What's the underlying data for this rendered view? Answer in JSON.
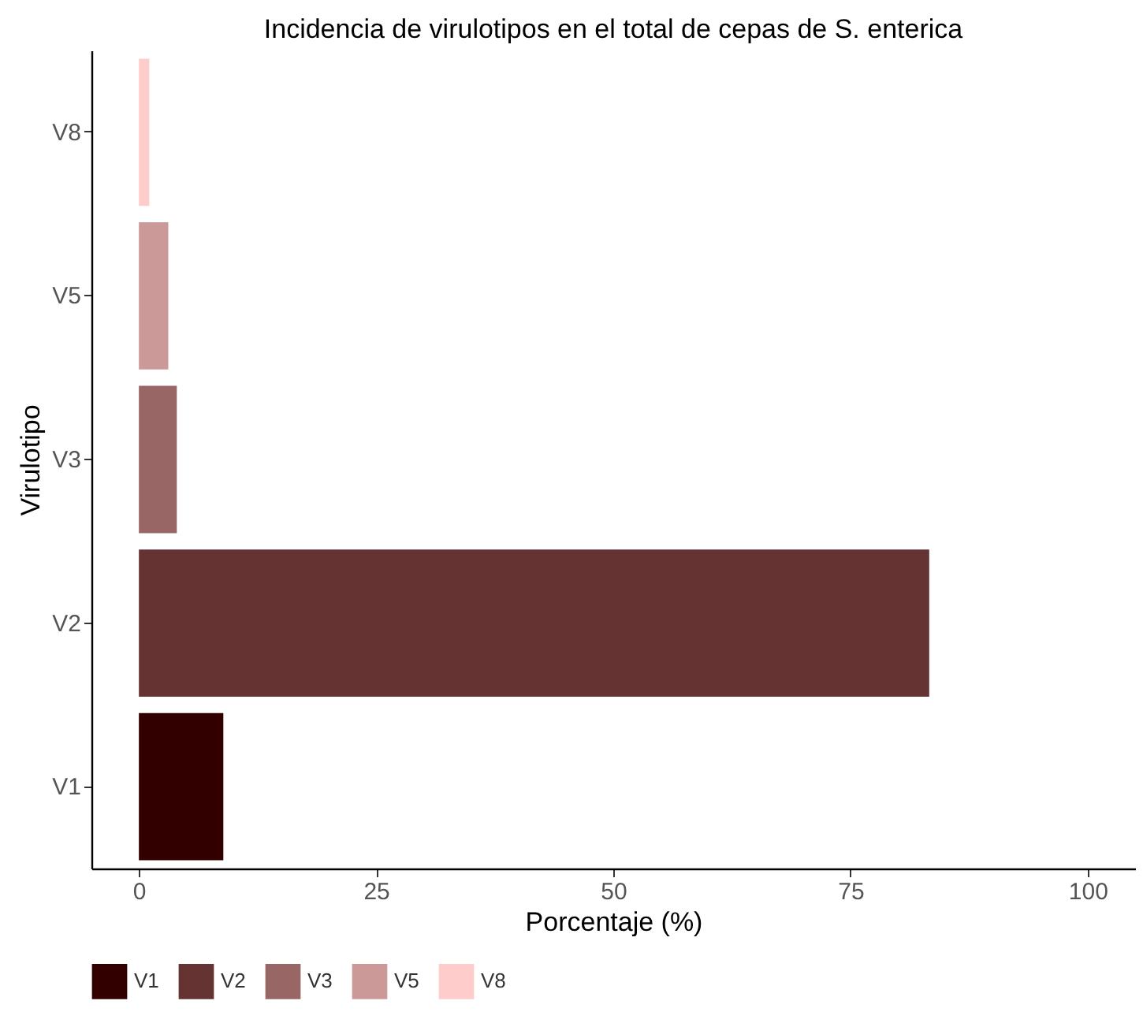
{
  "chart_data": {
    "type": "bar",
    "orientation": "horizontal",
    "title": "Incidencia de virulotipos en el total de cepas de S. enterica",
    "xlabel": "Porcentaje (%)",
    "ylabel": "Virulotipo",
    "categories": [
      "V8",
      "V5",
      "V3",
      "V2",
      "V1"
    ],
    "series": [
      {
        "name": "V1",
        "color": "#330000",
        "values": [
          null,
          null,
          null,
          null,
          8.9
        ]
      },
      {
        "name": "V2",
        "color": "#663333",
        "values": [
          null,
          null,
          null,
          83.3,
          null
        ]
      },
      {
        "name": "V3",
        "color": "#996666",
        "values": [
          null,
          null,
          4.0,
          null,
          null
        ]
      },
      {
        "name": "V5",
        "color": "#cc9999",
        "values": [
          null,
          3.1,
          null,
          null,
          null
        ]
      },
      {
        "name": "V8",
        "color": "#ffcccc",
        "values": [
          1.1,
          null,
          null,
          null,
          null
        ]
      }
    ],
    "xlim": [
      -5,
      105
    ],
    "xticks": [
      0,
      25,
      50,
      75,
      100
    ],
    "grid": false,
    "legend": "bottom"
  }
}
